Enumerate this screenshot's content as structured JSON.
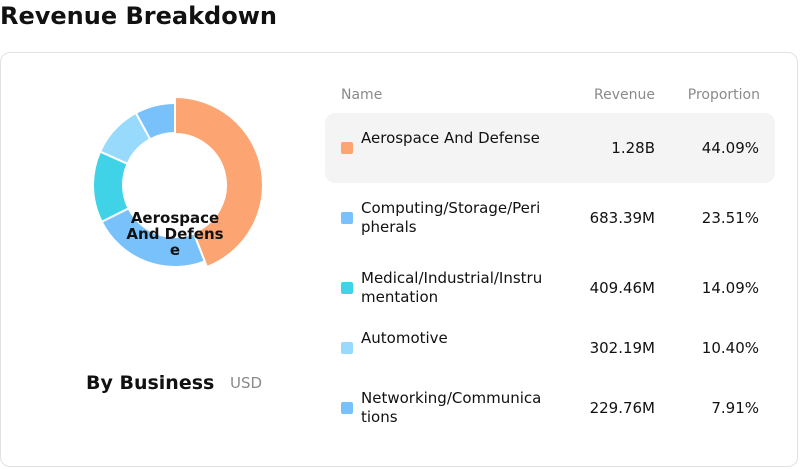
{
  "page": {
    "title": "Revenue Breakdown"
  },
  "summary": {
    "label": "By Business",
    "currency": "USD",
    "center_label": "Aerospace And Defense"
  },
  "table": {
    "headers": {
      "name": "Name",
      "revenue": "Revenue",
      "proportion": "Proportion"
    },
    "rows": [
      {
        "name": "Aerospace And Defense",
        "revenue": "1.28B",
        "proportion": "44.09%",
        "color": "#FCA572",
        "selected": true
      },
      {
        "name": "Computing/Storage/Peripherals",
        "revenue": "683.39M",
        "proportion": "23.51%",
        "color": "#79C1FB",
        "selected": false
      },
      {
        "name": "Medical/Industrial/Instrumentation",
        "revenue": "409.46M",
        "proportion": "14.09%",
        "color": "#40D2E6",
        "selected": false
      },
      {
        "name": "Automotive",
        "revenue": "302.19M",
        "proportion": "10.40%",
        "color": "#97DAFC",
        "selected": false
      },
      {
        "name": "Networking/Communications",
        "revenue": "229.76M",
        "proportion": "7.91%",
        "color": "#79C1FB",
        "selected": false
      }
    ]
  },
  "chart_data": {
    "type": "pie",
    "title": "",
    "categories": [
      "Aerospace And Defense",
      "Computing/Storage/Peripherals",
      "Medical/Industrial/Instrumentation",
      "Automotive",
      "Networking/Communications"
    ],
    "values": [
      44.09,
      23.51,
      14.09,
      10.4,
      7.91
    ],
    "revenue": [
      "1.28B",
      "683.39M",
      "409.46M",
      "302.19M",
      "229.76M"
    ],
    "colors": [
      "#FCA572",
      "#79C1FB",
      "#40D2E6",
      "#97DAFC",
      "#79C1FB"
    ],
    "highlighted": "Aerospace And Defense",
    "donut": true
  }
}
